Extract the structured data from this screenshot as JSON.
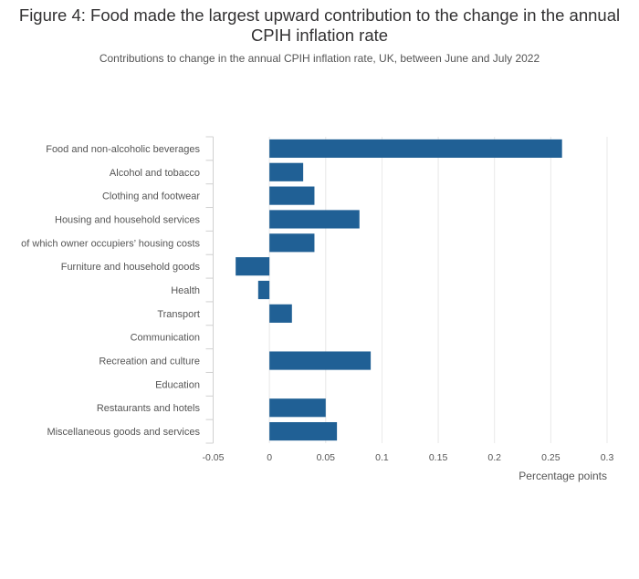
{
  "title": "Figure 4: Food made the largest upward contribution to the change in the annual CPIH inflation rate",
  "subtitle": "Contributions to change in the annual CPIH inflation rate, UK, between June and July 2022",
  "chart_data": {
    "type": "bar",
    "orientation": "horizontal",
    "categories": [
      "Food and non-alcoholic beverages",
      "Alcohol and tobacco",
      "Clothing and footwear",
      "Housing and household services",
      "of which owner occupiers’ housing costs",
      "Furniture and household goods",
      "Health",
      "Transport",
      "Communication",
      "Recreation and culture",
      "Education",
      "Restaurants and hotels",
      "Miscellaneous goods and services"
    ],
    "values": [
      0.26,
      0.03,
      0.04,
      0.08,
      0.04,
      -0.03,
      -0.01,
      0.02,
      0,
      0.09,
      0,
      0.05,
      0.06
    ],
    "xlabel": "Percentage points",
    "ylabel": "",
    "xlim": [
      -0.05,
      0.3
    ],
    "xticks": [
      -0.05,
      0,
      0.05,
      0.1,
      0.15,
      0.2,
      0.25,
      0.3
    ],
    "xtick_labels": [
      "-0.05",
      "0",
      "0.05",
      "0.1",
      "0.15",
      "0.2",
      "0.25",
      "0.3"
    ],
    "bar_color": "#206095",
    "grid": true
  }
}
